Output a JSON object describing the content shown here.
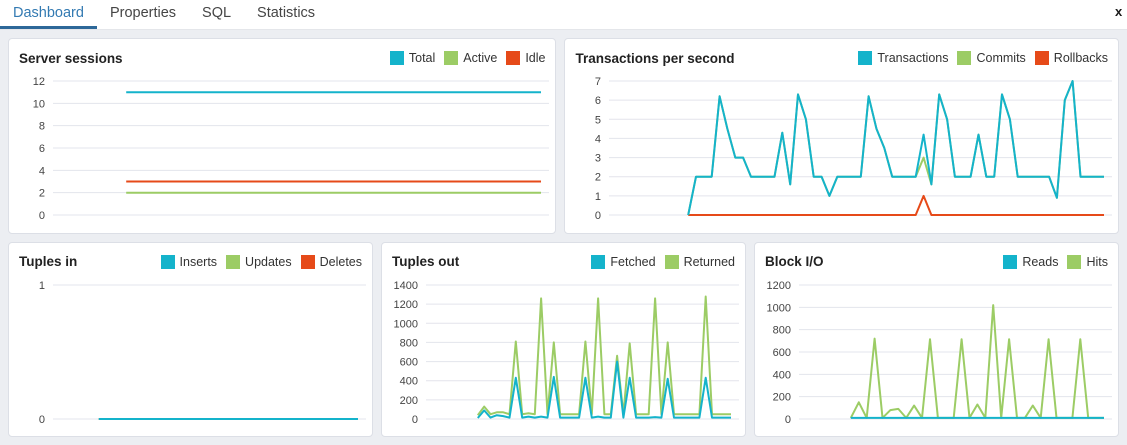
{
  "tabbar": {
    "tabs": [
      {
        "label": "Dashboard",
        "active": true
      },
      {
        "label": "Properties",
        "active": false
      },
      {
        "label": "SQL",
        "active": false
      },
      {
        "label": "Statistics",
        "active": false
      }
    ],
    "close_icon": "x"
  },
  "colors": {
    "series_cyan": "#14b3cb",
    "series_green": "#9CCC65",
    "series_red": "#E64A19",
    "tab_active_text": "#337ab2",
    "tab_active_underline": "#2d6899",
    "gridline": "#e3e4ec",
    "panel_background": "#ffffff",
    "page_background": "#eceef2"
  },
  "chart_data": [
    {
      "type": "line",
      "title": "Server sessions",
      "ylim": [
        0,
        12
      ],
      "yticks": [
        0,
        2,
        4,
        6,
        8,
        10,
        12
      ],
      "xlabel": "",
      "ylabel": "",
      "grid": true,
      "legend_position": "top-right",
      "x_start_fraction": 0.15,
      "series": [
        {
          "name": "Total",
          "color": "#14b3cb",
          "values": [
            11,
            11,
            11,
            11,
            11,
            11,
            11,
            11,
            11,
            11
          ]
        },
        {
          "name": "Active",
          "color": "#9CCC65",
          "values": [
            2,
            2,
            2,
            2,
            2,
            2,
            2,
            2,
            2,
            2
          ]
        },
        {
          "name": "Idle",
          "color": "#E64A19",
          "values": [
            3,
            3,
            3,
            3,
            3,
            3,
            3,
            3,
            3,
            3
          ]
        }
      ]
    },
    {
      "type": "line",
      "title": "Transactions per second",
      "ylim": [
        0,
        7
      ],
      "yticks": [
        0,
        1,
        2,
        3,
        4,
        5,
        6,
        7
      ],
      "xlabel": "",
      "ylabel": "",
      "grid": true,
      "legend_position": "top-right",
      "x_start_fraction": 0.16,
      "series": [
        {
          "name": "Transactions",
          "color": "#14b3cb",
          "values": [
            0,
            2,
            2,
            2,
            6.2,
            4.5,
            3,
            3,
            2,
            2,
            2,
            2,
            4.3,
            1.6,
            6.3,
            5,
            2,
            2,
            1,
            2,
            2,
            2,
            2,
            6.2,
            4.5,
            3.5,
            2,
            2,
            2,
            2,
            4.2,
            1.6,
            6.3,
            5,
            2,
            2,
            2,
            4.2,
            2,
            2,
            6.3,
            5,
            2,
            2,
            2,
            2,
            2,
            0.9,
            6,
            7,
            2,
            2,
            2,
            2
          ]
        },
        {
          "name": "Commits",
          "color": "#9CCC65",
          "values": [
            0,
            2,
            2,
            2,
            6.2,
            4.5,
            3,
            3,
            2,
            2,
            2,
            2,
            4.3,
            1.6,
            6.3,
            5,
            2,
            2,
            1,
            2,
            2,
            2,
            2,
            6.2,
            4.5,
            3.5,
            2,
            2,
            2,
            2,
            3,
            1.6,
            6.3,
            5,
            2,
            2,
            2,
            4.2,
            2,
            2,
            6.3,
            5,
            2,
            2,
            2,
            2,
            2,
            0.9,
            6,
            7,
            2,
            2,
            2,
            2
          ]
        },
        {
          "name": "Rollbacks",
          "color": "#E64A19",
          "values": [
            0,
            0,
            0,
            0,
            0,
            0,
            0,
            0,
            0,
            0,
            0,
            0,
            0,
            0,
            0,
            0,
            0,
            0,
            0,
            0,
            0,
            0,
            0,
            0,
            0,
            0,
            0,
            0,
            0,
            0,
            1,
            0,
            0,
            0,
            0,
            0,
            0,
            0,
            0,
            0,
            0,
            0,
            0,
            0,
            0,
            0,
            0,
            0,
            0,
            0,
            0,
            0,
            0,
            0
          ]
        }
      ]
    },
    {
      "type": "line",
      "title": "Tuples in",
      "ylim": [
        0,
        1
      ],
      "yticks": [
        0,
        1
      ],
      "xlabel": "",
      "ylabel": "",
      "grid": true,
      "legend_position": "top-right",
      "x_start_fraction": 0.15,
      "series": [
        {
          "name": "Inserts",
          "color": "#14b3cb",
          "values": [
            0,
            0,
            0,
            0,
            0,
            0,
            0,
            0,
            0,
            0
          ]
        },
        {
          "name": "Updates",
          "color": "#9CCC65",
          "values": [
            0,
            0,
            0,
            0,
            0,
            0,
            0,
            0,
            0,
            0
          ]
        },
        {
          "name": "Deletes",
          "color": "#E64A19",
          "values": [
            0,
            0,
            0,
            0,
            0,
            0,
            0,
            0,
            0,
            0
          ]
        }
      ]
    },
    {
      "type": "line",
      "title": "Tuples out",
      "ylim": [
        0,
        1400
      ],
      "yticks": [
        0,
        200,
        400,
        600,
        800,
        1000,
        1200,
        1400
      ],
      "xlabel": "",
      "ylabel": "",
      "grid": true,
      "legend_position": "top-right",
      "x_start_fraction": 0.17,
      "series": [
        {
          "name": "Fetched",
          "color": "#14b3cb",
          "values": [
            10,
            90,
            15,
            40,
            30,
            15,
            430,
            15,
            25,
            15,
            25,
            15,
            440,
            15,
            15,
            15,
            15,
            430,
            15,
            25,
            15,
            15,
            600,
            15,
            430,
            15,
            15,
            15,
            20,
            15,
            420,
            15,
            15,
            15,
            15,
            15,
            430,
            15,
            15,
            15,
            15
          ]
        },
        {
          "name": "Returned",
          "color": "#9CCC65",
          "values": [
            40,
            130,
            50,
            70,
            70,
            50,
            810,
            50,
            60,
            50,
            1260,
            50,
            800,
            50,
            50,
            50,
            50,
            810,
            50,
            1260,
            50,
            50,
            660,
            50,
            790,
            50,
            50,
            50,
            1260,
            50,
            800,
            50,
            50,
            50,
            50,
            50,
            1280,
            50,
            50,
            50,
            50
          ]
        }
      ]
    },
    {
      "type": "line",
      "title": "Block I/O",
      "ylim": [
        0,
        1200
      ],
      "yticks": [
        0,
        200,
        400,
        600,
        800,
        1000,
        1200
      ],
      "xlabel": "",
      "ylabel": "",
      "grid": true,
      "legend_position": "top-right",
      "x_start_fraction": 0.17,
      "series": [
        {
          "name": "Reads",
          "color": "#14b3cb",
          "values": [
            10,
            10,
            10,
            10,
            10,
            10,
            10,
            10,
            10,
            10,
            10,
            10,
            10,
            10,
            10,
            10,
            10,
            10,
            10,
            10,
            10,
            10,
            10,
            10,
            10,
            10,
            10,
            10,
            10,
            10,
            10,
            10,
            10
          ]
        },
        {
          "name": "Hits",
          "color": "#9CCC65",
          "values": [
            10,
            150,
            10,
            720,
            10,
            80,
            90,
            10,
            120,
            10,
            715,
            10,
            10,
            10,
            715,
            10,
            130,
            10,
            1020,
            10,
            715,
            10,
            10,
            120,
            10,
            715,
            10,
            10,
            10,
            715,
            10,
            10,
            10
          ]
        }
      ]
    }
  ]
}
